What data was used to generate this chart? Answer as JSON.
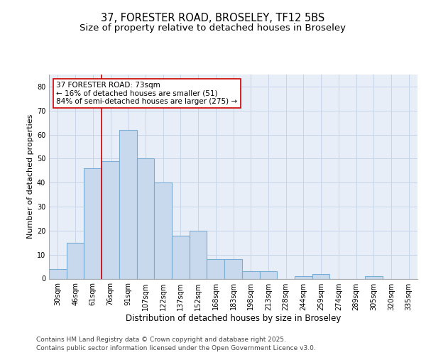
{
  "title_line1": "37, FORESTER ROAD, BROSELEY, TF12 5BS",
  "title_line2": "Size of property relative to detached houses in Broseley",
  "xlabel": "Distribution of detached houses by size in Broseley",
  "ylabel": "Number of detached properties",
  "bar_labels": [
    "30sqm",
    "46sqm",
    "61sqm",
    "76sqm",
    "91sqm",
    "107sqm",
    "122sqm",
    "137sqm",
    "152sqm",
    "168sqm",
    "183sqm",
    "198sqm",
    "213sqm",
    "228sqm",
    "244sqm",
    "259sqm",
    "274sqm",
    "289sqm",
    "305sqm",
    "320sqm",
    "335sqm"
  ],
  "bar_heights": [
    4,
    15,
    46,
    49,
    62,
    50,
    40,
    18,
    20,
    8,
    8,
    3,
    3,
    0,
    1,
    2,
    0,
    0,
    1,
    0,
    0
  ],
  "bar_color": "#c8d9ee",
  "bar_edge_color": "#7aadd4",
  "bar_edge_width": 0.8,
  "vline_color": "#cc0000",
  "vline_x_index": 3,
  "annotation_title": "37 FORESTER ROAD: 73sqm",
  "annotation_line2": "← 16% of detached houses are smaller (51)",
  "annotation_line3": "84% of semi-detached houses are larger (275) →",
  "annotation_box_color": "#cc0000",
  "annotation_bg": "#ffffff",
  "ylim": [
    0,
    85
  ],
  "yticks": [
    0,
    10,
    20,
    30,
    40,
    50,
    60,
    70,
    80
  ],
  "grid_color": "#c8d4e8",
  "bg_color": "#e8eef8",
  "footer_line1": "Contains HM Land Registry data © Crown copyright and database right 2025.",
  "footer_line2": "Contains public sector information licensed under the Open Government Licence v3.0.",
  "title_fontsize": 10.5,
  "subtitle_fontsize": 9.5,
  "ylabel_fontsize": 8,
  "xlabel_fontsize": 8.5,
  "tick_fontsize": 7,
  "annot_fontsize": 7.5,
  "footer_fontsize": 6.5
}
